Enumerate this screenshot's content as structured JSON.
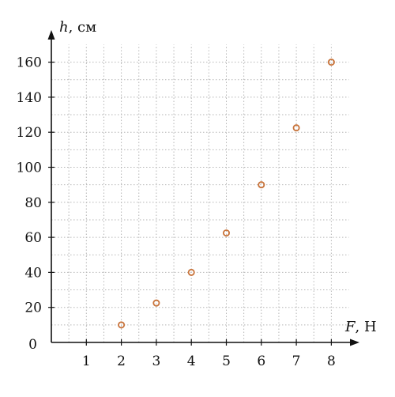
{
  "chart_data": {
    "type": "scatter",
    "title": "",
    "xlabel": {
      "var": "F",
      "unit": ", Н"
    },
    "ylabel": {
      "var": "h",
      "unit": ", см"
    },
    "xlim": [
      0,
      8.5
    ],
    "ylim": [
      0,
      170
    ],
    "x_ticks": [
      "1",
      "2",
      "3",
      "4",
      "5",
      "6",
      "7",
      "8"
    ],
    "y_ticks": [
      "20",
      "40",
      "60",
      "80",
      "100",
      "120",
      "140",
      "160"
    ],
    "origin_label": "0",
    "grid": true,
    "grid_minor_x": 0.5,
    "grid_minor_y": 10,
    "series": [
      {
        "marker": "hollow-circle",
        "color": "#c8733a",
        "points": [
          {
            "x": 2,
            "y": 10
          },
          {
            "x": 3,
            "y": 22.5
          },
          {
            "x": 4,
            "y": 40
          },
          {
            "x": 5,
            "y": 62.5
          },
          {
            "x": 6,
            "y": 90
          },
          {
            "x": 7,
            "y": 122.5
          },
          {
            "x": 8,
            "y": 160
          }
        ]
      }
    ]
  }
}
